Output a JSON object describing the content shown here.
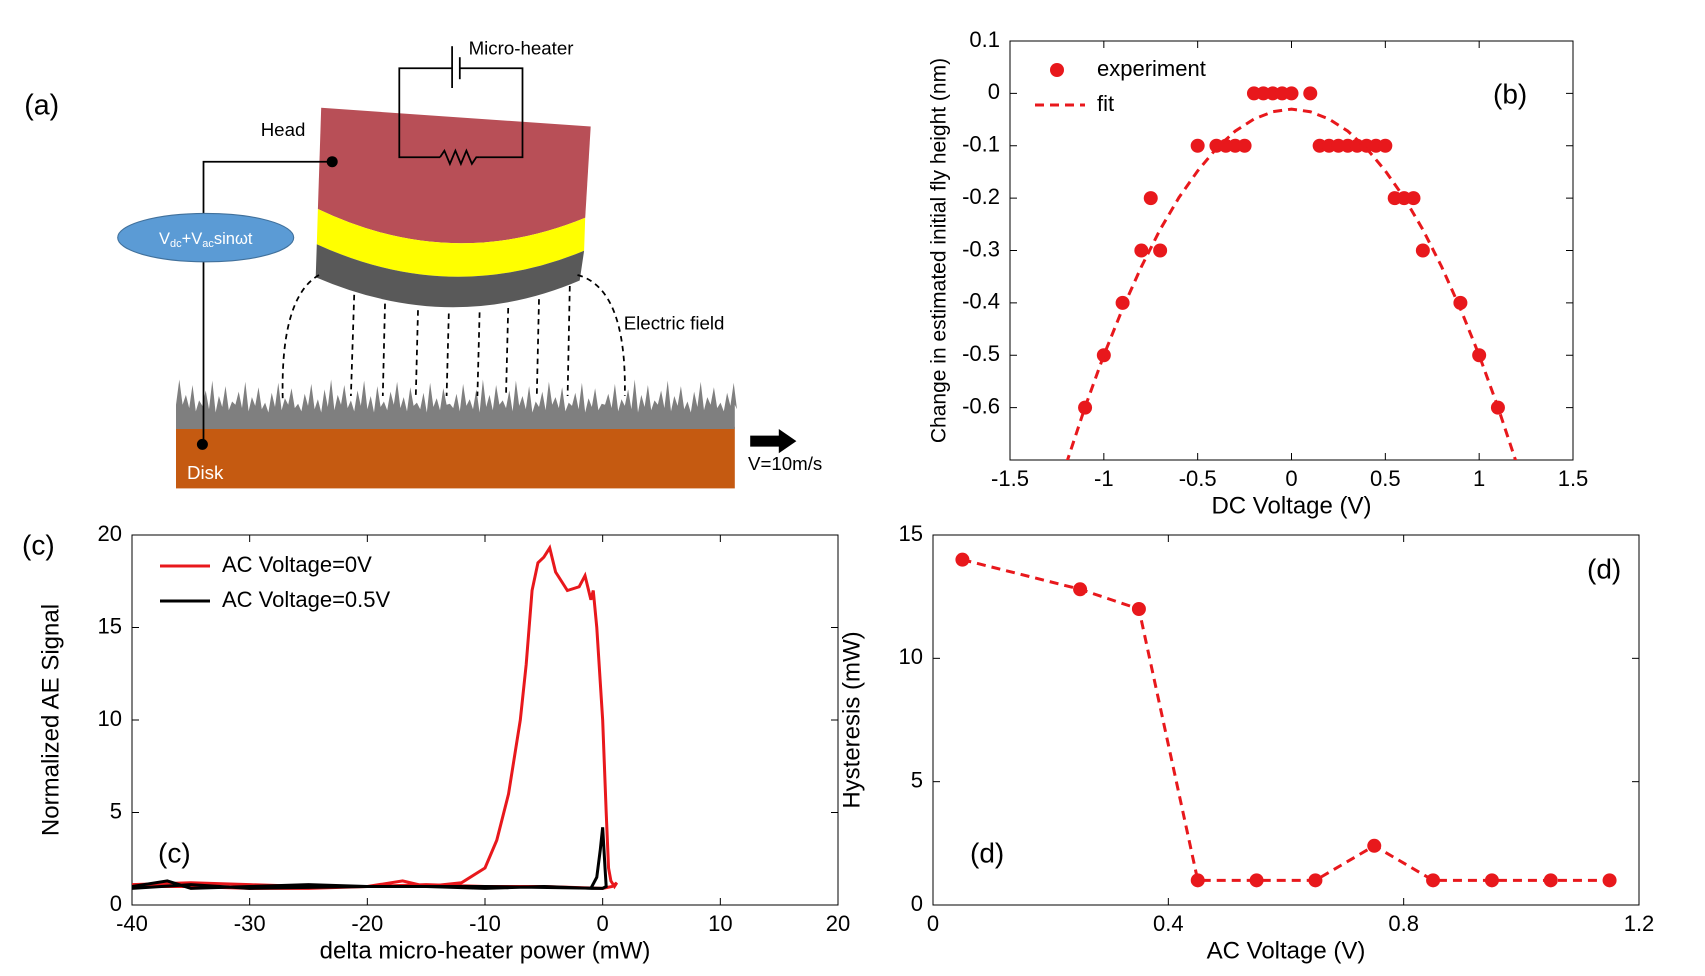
{
  "diagram": {
    "panel_label": "(a)",
    "heater_label": "Micro-heater",
    "head_label": "Head",
    "source_label": [
      "V",
      "dc",
      "+V",
      "ac",
      "sinωt"
    ],
    "field_label": "Electric field",
    "disk_label": "Disk",
    "speed_label": "V=10m/s"
  },
  "chart_data": [
    {
      "type": "scatter",
      "annotation": "(b)",
      "xlabel": "DC Voltage (V)",
      "ylabel": "Change in estimated initial fly height (nm)",
      "xlim": [
        -1.5,
        1.5
      ],
      "ylim": [
        -0.7,
        0.1
      ],
      "xticks": [
        -1.5,
        -1,
        -0.5,
        0,
        0.5,
        1,
        1.5
      ],
      "yticks": [
        0.1,
        0,
        -0.1,
        -0.2,
        -0.3,
        -0.4,
        -0.5,
        -0.6
      ],
      "legend": "upper left",
      "series": [
        {
          "name": "experiment",
          "color": "#e8181c",
          "marker": "o",
          "linestyle": "none",
          "x": [
            -1.1,
            -1.0,
            -0.9,
            -0.8,
            -0.7,
            -0.75,
            -0.5,
            -0.4,
            -0.35,
            -0.3,
            -0.25,
            -0.2,
            -0.15,
            -0.1,
            -0.05,
            0,
            0.1,
            0.15,
            0.2,
            0.25,
            0.3,
            0.35,
            0.4,
            0.45,
            0.5,
            0.55,
            0.6,
            0.65,
            0.7,
            0.9,
            1.0,
            1.1
          ],
          "values": [
            -0.6,
            -0.5,
            -0.4,
            -0.3,
            -0.3,
            -0.2,
            -0.1,
            -0.1,
            -0.1,
            -0.1,
            -0.1,
            0,
            0,
            0,
            0,
            0,
            0,
            -0.1,
            -0.1,
            -0.1,
            -0.1,
            -0.1,
            -0.1,
            -0.1,
            -0.1,
            -0.2,
            -0.2,
            -0.2,
            -0.3,
            -0.4,
            -0.5,
            -0.6
          ]
        },
        {
          "name": "fit",
          "color": "#e8181c",
          "marker": "none",
          "linestyle": "--",
          "x": [
            -1.2,
            -1.1,
            -1.0,
            -0.9,
            -0.8,
            -0.7,
            -0.6,
            -0.5,
            -0.4,
            -0.3,
            -0.2,
            -0.1,
            0,
            0.1,
            0.2,
            0.3,
            0.4,
            0.5,
            0.6,
            0.7,
            0.8,
            0.9,
            1.0,
            1.1,
            1.2
          ],
          "values": [
            -0.707,
            -0.599,
            -0.5,
            -0.411,
            -0.331,
            -0.26,
            -0.199,
            -0.148,
            -0.105,
            -0.072,
            -0.049,
            -0.035,
            -0.03,
            -0.035,
            -0.049,
            -0.072,
            -0.105,
            -0.148,
            -0.199,
            -0.26,
            -0.331,
            -0.411,
            -0.5,
            -0.599,
            -0.707
          ]
        }
      ]
    },
    {
      "type": "line",
      "panel_label": "(c)",
      "annotation": "(c)",
      "xlabel": "delta micro-heater power (mW)",
      "ylabel": "Normalized AE Signal",
      "xlim": [
        -40,
        20
      ],
      "ylim": [
        0,
        20
      ],
      "xticks": [
        -40,
        -30,
        -20,
        -10,
        0,
        10,
        20
      ],
      "yticks": [
        0,
        5,
        10,
        15,
        20
      ],
      "legend": "upper left",
      "series": [
        {
          "name": "AC Voltage=0V",
          "color": "#e8181c",
          "marker": "none",
          "linestyle": "-",
          "x": [
            -40,
            -35,
            -30,
            -25,
            -20,
            -17,
            -15,
            -12,
            -10,
            -9,
            -8,
            -7,
            -6.5,
            -6,
            -5.5,
            -5,
            -4.5,
            -4,
            -3.5,
            -3,
            -2,
            -1.5,
            -1,
            -0.8,
            -0.5,
            0,
            0.3,
            0.5,
            0.7,
            1,
            1.2,
            0.8,
            0,
            -5,
            -10,
            -15,
            -20,
            -25,
            -30,
            -35,
            -40
          ],
          "values": [
            1.1,
            1.2,
            1.1,
            1.0,
            1.0,
            1.3,
            1.0,
            1.2,
            2,
            3.5,
            6,
            10,
            13,
            17,
            18.5,
            18.8,
            19.3,
            18,
            17.5,
            17,
            17.2,
            17.8,
            16.5,
            17,
            15,
            10,
            5,
            2,
            1.3,
            1,
            1.2,
            1,
            0.9,
            1.0,
            1.0,
            1.1,
            1.0,
            0.9,
            0.9,
            1.0,
            1.0
          ]
        },
        {
          "name": "AC Voltage=0.5V",
          "color": "#000000",
          "marker": "none",
          "linestyle": "-",
          "x": [
            -40,
            -37,
            -35,
            -30,
            -25,
            -20,
            -15,
            -10,
            -5,
            -1,
            -0.5,
            -0.2,
            0,
            0.2,
            0.3,
            0,
            -10,
            -20,
            -30,
            -35,
            -40
          ],
          "values": [
            1,
            1.3,
            0.9,
            1,
            1.1,
            1,
            1,
            0.9,
            1,
            0.9,
            1.5,
            3,
            4.2,
            2,
            1,
            0.9,
            1,
            1,
            0.9,
            1.1,
            0.9
          ]
        }
      ]
    },
    {
      "type": "line",
      "annotation": "(d)",
      "annotation2": "(d)",
      "xlabel": "AC Voltage (V)",
      "ylabel": "Hysteresis (mW)",
      "xlim": [
        0,
        1.2
      ],
      "ylim": [
        0,
        15
      ],
      "xticks": [
        0,
        0.4,
        0.8,
        1.2
      ],
      "yticks": [
        0,
        5,
        10,
        15
      ],
      "series": [
        {
          "color": "#e8181c",
          "marker": "o",
          "linestyle": "--",
          "x": [
            0.05,
            0.25,
            0.35,
            0.45,
            0.55,
            0.65,
            0.75,
            0.85,
            0.95,
            1.05,
            1.15
          ],
          "values": [
            14,
            12.8,
            12,
            1,
            1,
            1,
            2.4,
            1,
            1,
            1,
            1
          ]
        }
      ]
    }
  ]
}
